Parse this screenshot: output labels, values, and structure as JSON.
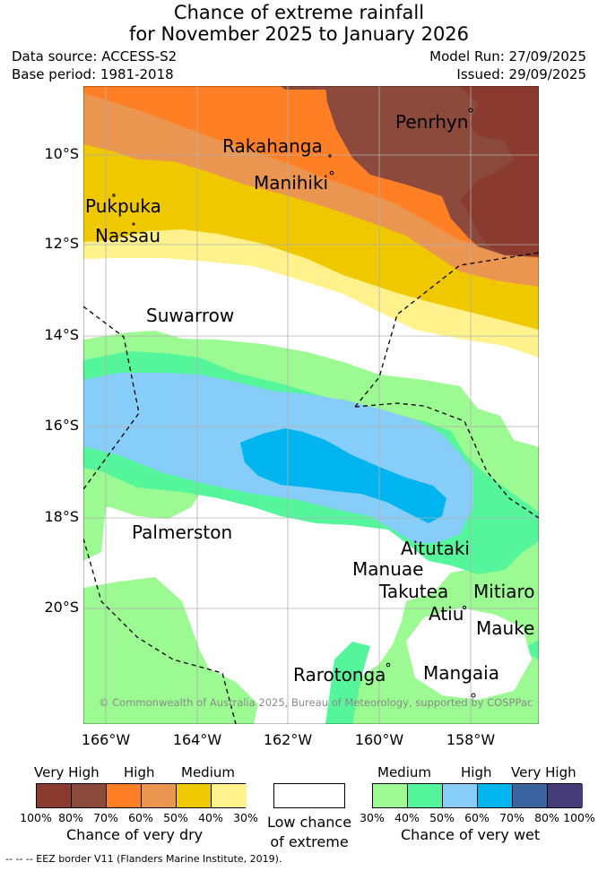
{
  "header": {
    "title_line1": "Chance of extreme rainfall",
    "title_line2": "for November 2025 to January 2026",
    "data_source": "Data source: ACCESS-S2",
    "base_period": "Base period: 1981-2018",
    "model_run": "Model Run: 27/09/2025",
    "issued": "Issued: 29/09/2025"
  },
  "map": {
    "y_ticks": [
      "10°S",
      "12°S",
      "14°S",
      "16°S",
      "18°S",
      "20°S"
    ],
    "x_ticks": [
      "166°W",
      "164°W",
      "162°W",
      "160°W",
      "158°W"
    ],
    "places": {
      "penrhyn": "Penrhyn",
      "rakahanga": "Rakahanga",
      "manihiki": "Manihiki",
      "pukapuka": "Pukpuka",
      "nassau": "Nassau",
      "suwarrow": "Suwarrow",
      "palmerston": "Palmerston",
      "aitutaki": "Aitutaki",
      "manuae": "Manuae",
      "takutea": "Takutea",
      "mitiaro": "Mitiaro",
      "atiu": "Atiu",
      "mauke": "Mauke",
      "rarotonga": "Rarotonga",
      "mangaia": "Mangaia"
    },
    "copyright": "© Commonwealth of Australia 2025, Bureau of Meteorology, supported by COSPPac"
  },
  "legend": {
    "dry": {
      "headers": [
        "Very High",
        "High",
        "Medium"
      ],
      "colors": [
        "#8b3a2f",
        "#8b4a3c",
        "#ff7f24",
        "#eb9650",
        "#f0c800",
        "#fff28c"
      ],
      "percents": [
        "100%",
        "80%",
        "70%",
        "60%",
        "50%",
        "40%",
        "30%"
      ],
      "label": "Chance of very dry"
    },
    "neutral": {
      "color": "#ffffff",
      "label_line1": "Low chance",
      "label_line2": "of extreme"
    },
    "wet": {
      "headers": [
        "Medium",
        "High",
        "Very High"
      ],
      "colors": [
        "#9bfa91",
        "#55f59b",
        "#87cdfa",
        "#00b4f0",
        "#3c64a0",
        "#463c78"
      ],
      "percents": [
        "30%",
        "40%",
        "50%",
        "60%",
        "70%",
        "80%",
        "100%"
      ],
      "label": "Chance of very wet"
    }
  },
  "footnote": "--  --  -- EEZ border V11 (Flanders Marine Institute, 2019)."
}
